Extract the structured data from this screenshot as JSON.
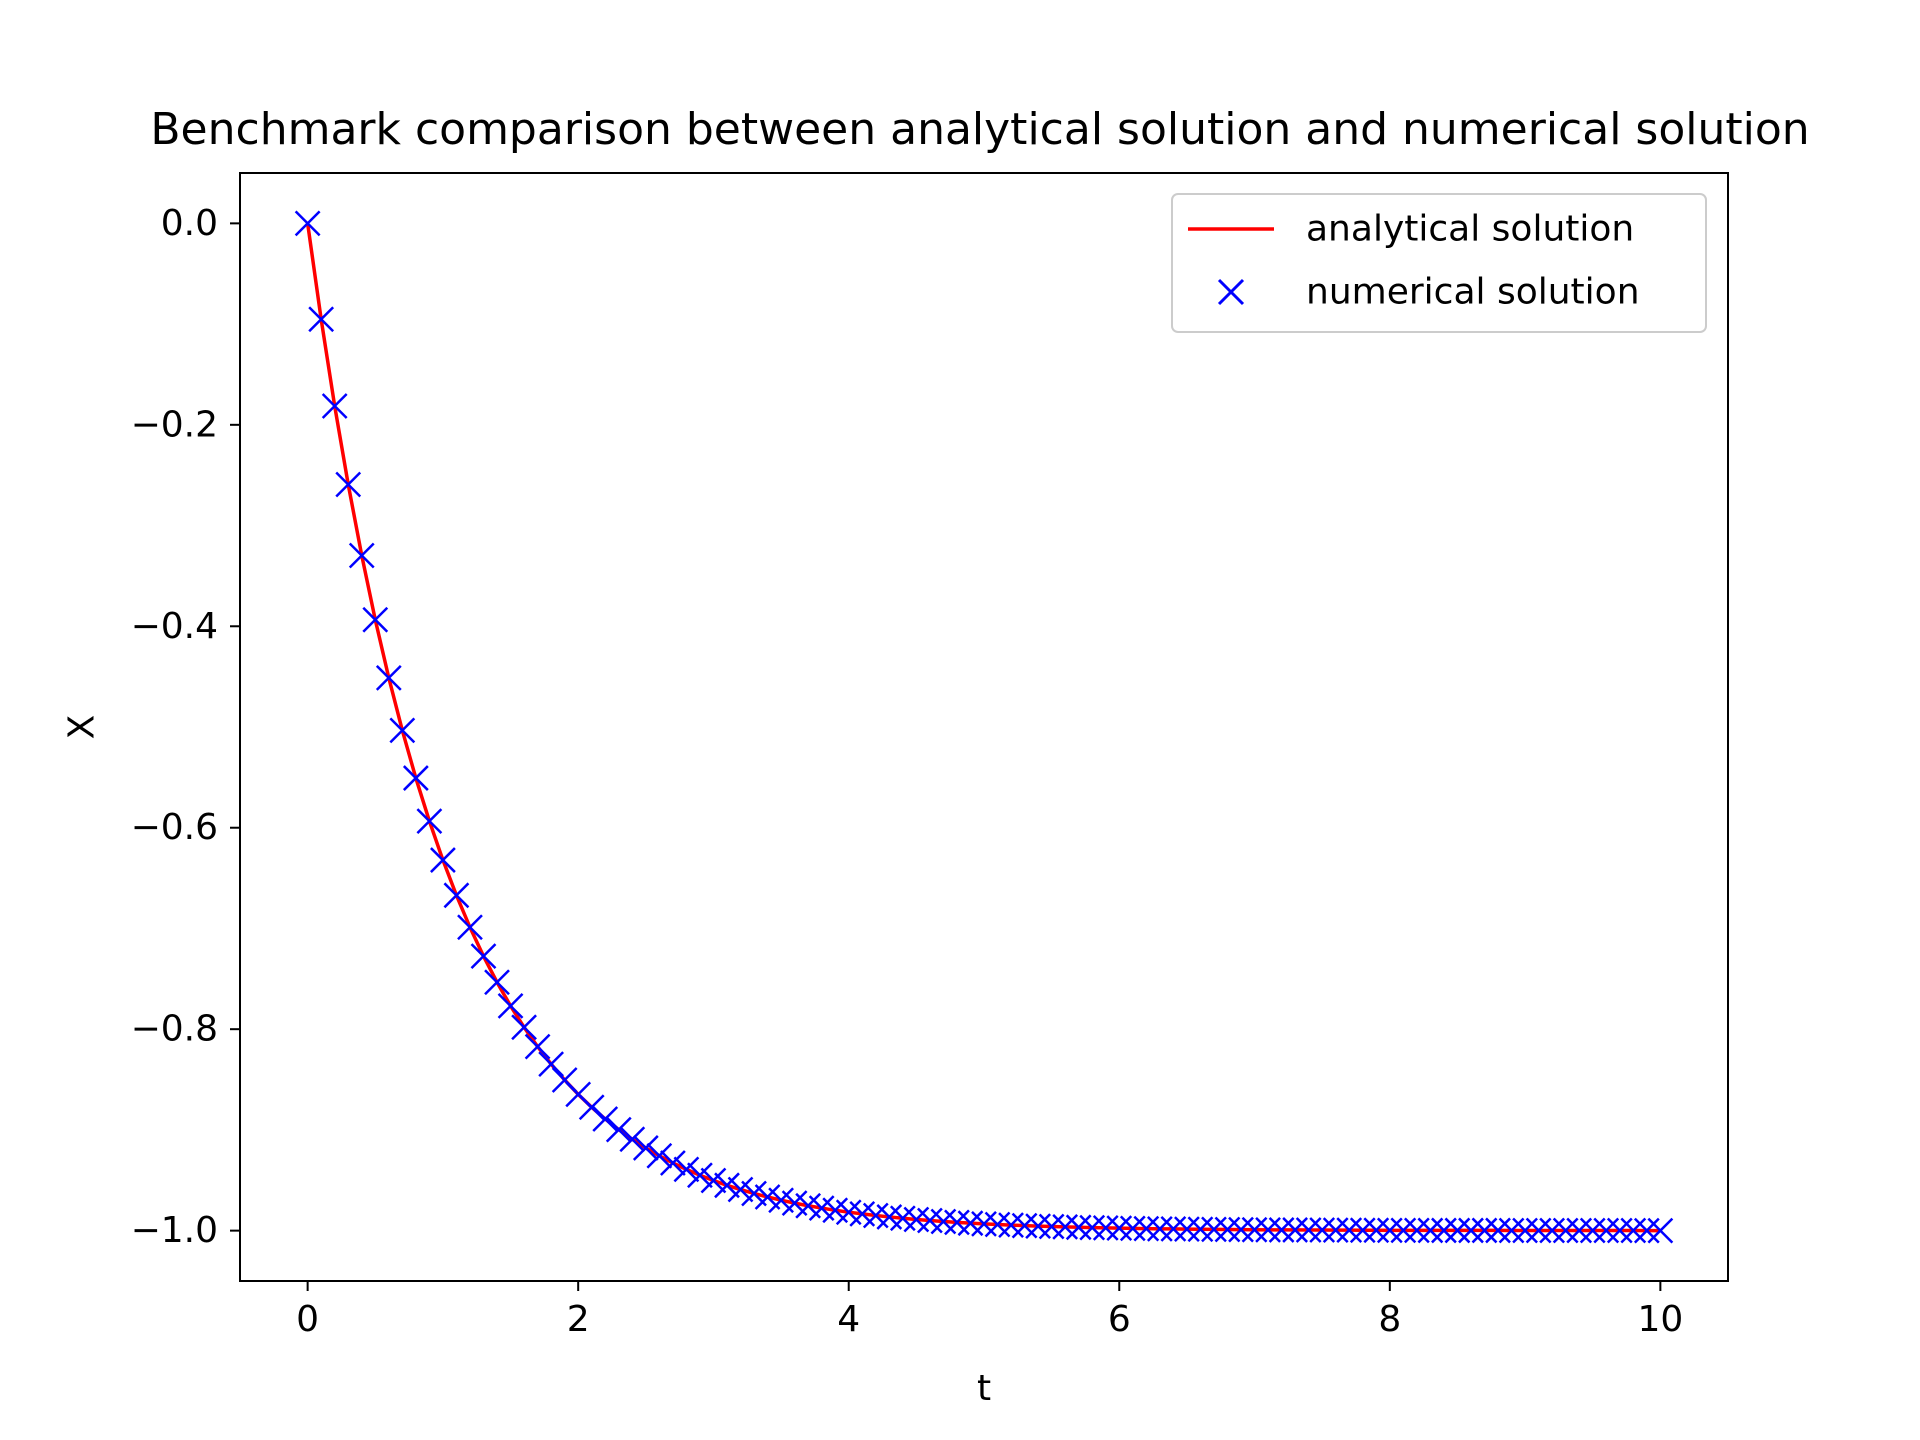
{
  "chart_data": {
    "type": "line",
    "title": "Benchmark comparison between analytical solution and numerical solution",
    "xlabel": "t",
    "ylabel": "X",
    "xlim": [
      -0.5,
      10.5
    ],
    "ylim": [
      -1.05,
      0.05
    ],
    "xticks": [
      0,
      2,
      4,
      6,
      8,
      10
    ],
    "xtick_labels": [
      "0",
      "2",
      "4",
      "6",
      "8",
      "10"
    ],
    "yticks": [
      0.0,
      -0.2,
      -0.4,
      -0.6,
      -0.8,
      -1.0
    ],
    "ytick_labels": [
      "0.0",
      "−0.2",
      "−0.4",
      "−0.6",
      "−0.8",
      "−1.0"
    ],
    "grid": false,
    "legend_position": "upper right",
    "x": [
      0,
      0.1,
      0.2,
      0.3,
      0.4,
      0.5,
      0.6,
      0.7,
      0.8,
      0.9,
      1,
      1.1,
      1.2,
      1.3,
      1.4,
      1.5,
      1.6,
      1.7,
      1.8,
      1.9,
      2,
      2.1,
      2.2,
      2.3,
      2.4,
      2.5,
      2.6,
      2.7,
      2.8,
      2.9,
      3,
      3.1,
      3.2,
      3.3,
      3.4,
      3.5,
      3.6,
      3.7,
      3.8,
      3.9,
      4,
      4.1,
      4.2,
      4.3,
      4.4,
      4.5,
      4.6,
      4.7,
      4.8,
      4.9,
      5,
      5.1,
      5.2,
      5.3,
      5.4,
      5.5,
      5.6,
      5.7,
      5.8,
      5.9,
      6,
      6.1,
      6.2,
      6.3,
      6.4,
      6.5,
      6.6,
      6.7,
      6.8,
      6.9,
      7,
      7.1,
      7.2,
      7.3,
      7.4,
      7.5,
      7.6,
      7.7,
      7.8,
      7.9,
      8,
      8.1,
      8.2,
      8.3,
      8.4,
      8.5,
      8.6,
      8.7,
      8.8,
      8.9,
      9,
      9.1,
      9.2,
      9.3,
      9.4,
      9.5,
      9.6,
      9.7,
      9.8,
      9.9,
      10
    ],
    "series": [
      {
        "name": "analytical solution",
        "style": "line",
        "color": "#ff0000",
        "y": [
          0,
          -0.0952,
          -0.1813,
          -0.2592,
          -0.3297,
          -0.3935,
          -0.4512,
          -0.5034,
          -0.5507,
          -0.5934,
          -0.6321,
          -0.6671,
          -0.6988,
          -0.7275,
          -0.7534,
          -0.7769,
          -0.7981,
          -0.8173,
          -0.8347,
          -0.8504,
          -0.8647,
          -0.8775,
          -0.8892,
          -0.8997,
          -0.9093,
          -0.9179,
          -0.9257,
          -0.9328,
          -0.9392,
          -0.945,
          -0.9502,
          -0.955,
          -0.9592,
          -0.9631,
          -0.9666,
          -0.9698,
          -0.9727,
          -0.9753,
          -0.9776,
          -0.9798,
          -0.9817,
          -0.9834,
          -0.985,
          -0.9864,
          -0.9877,
          -0.9889,
          -0.9899,
          -0.9909,
          -0.9918,
          -0.9926,
          -0.9933,
          -0.9939,
          -0.9945,
          -0.995,
          -0.9955,
          -0.9959,
          -0.9963,
          -0.9967,
          -0.997,
          -0.9973,
          -0.9975,
          -0.9978,
          -0.998,
          -0.9982,
          -0.9983,
          -0.9985,
          -0.9986,
          -0.9988,
          -0.9989,
          -0.999,
          -0.9991,
          -0.9992,
          -0.9993,
          -0.9993,
          -0.9994,
          -0.9994,
          -0.9995,
          -0.9995,
          -0.9996,
          -0.9996,
          -0.9997,
          -0.9997,
          -0.9997,
          -0.9998,
          -0.9998,
          -0.9998,
          -0.9998,
          -0.9998,
          -0.9998,
          -0.9999,
          -0.9999,
          -0.9999,
          -0.9999,
          -0.9999,
          -0.9999,
          -0.9999,
          -0.9999,
          -0.9999,
          -0.9999,
          -0.99995,
          -0.99995
        ]
      },
      {
        "name": "numerical solution",
        "style": "x-marker",
        "color": "#0000ff",
        "y": [
          0,
          -0.0952,
          -0.1813,
          -0.2592,
          -0.3297,
          -0.3935,
          -0.4512,
          -0.5034,
          -0.5507,
          -0.5934,
          -0.6321,
          -0.6671,
          -0.6988,
          -0.7275,
          -0.7534,
          -0.7769,
          -0.7981,
          -0.8173,
          -0.8347,
          -0.8504,
          -0.8647,
          -0.8775,
          -0.8892,
          -0.8997,
          -0.9093,
          -0.9179,
          -0.9257,
          -0.9328,
          -0.9392,
          -0.945,
          -0.9502,
          -0.955,
          -0.9592,
          -0.9631,
          -0.9666,
          -0.9698,
          -0.9727,
          -0.9753,
          -0.9776,
          -0.9798,
          -0.9817,
          -0.9834,
          -0.985,
          -0.9864,
          -0.9877,
          -0.9889,
          -0.9899,
          -0.9909,
          -0.9918,
          -0.9926,
          -0.9933,
          -0.9939,
          -0.9945,
          -0.995,
          -0.9955,
          -0.9959,
          -0.9963,
          -0.9967,
          -0.997,
          -0.9973,
          -0.9975,
          -0.9978,
          -0.998,
          -0.9982,
          -0.9983,
          -0.9985,
          -0.9986,
          -0.9988,
          -0.9989,
          -0.999,
          -0.9991,
          -0.9992,
          -0.9993,
          -0.9993,
          -0.9994,
          -0.9994,
          -0.9995,
          -0.9995,
          -0.9996,
          -0.9996,
          -0.9997,
          -0.9997,
          -0.9997,
          -0.9998,
          -0.9998,
          -0.9998,
          -0.9998,
          -0.9998,
          -0.9998,
          -0.9999,
          -0.9999,
          -0.9999,
          -0.9999,
          -0.9999,
          -0.9999,
          -0.9999,
          -0.9999,
          -0.9999,
          -0.9999,
          -0.99995,
          -0.99995
        ]
      }
    ]
  }
}
